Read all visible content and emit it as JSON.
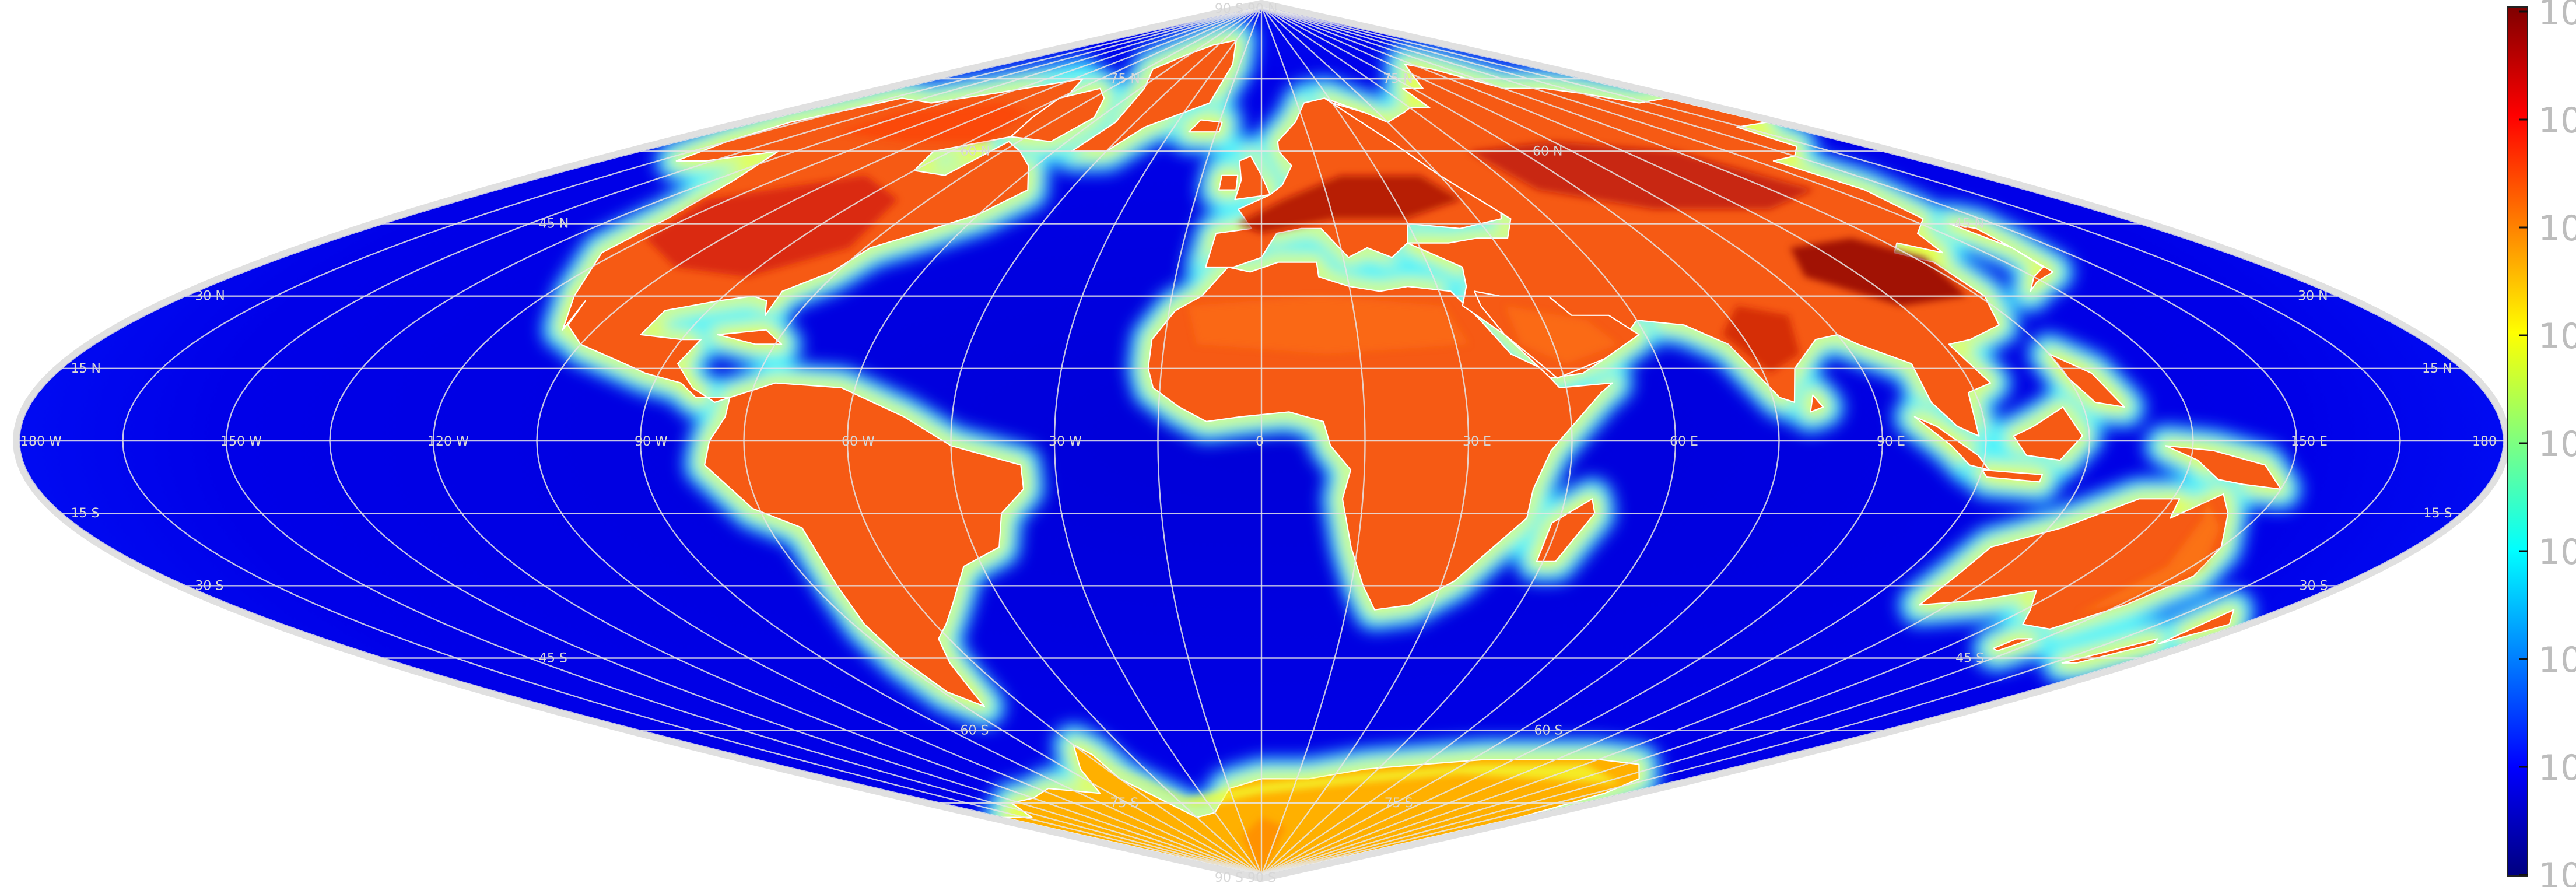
{
  "map": {
    "projection": "sinusoidal",
    "center_longitude": 0,
    "graticule_spacing_deg": 15,
    "frame_color": "#e0e0e0",
    "border_color": "#ffffff",
    "meridian_labels": [
      "180 W",
      "150 W",
      "120 W",
      "90 W",
      "60 W",
      "30 W",
      "0",
      "30 E",
      "60 E",
      "90 E",
      "150 E",
      "180"
    ],
    "parallel_labels_left": [
      "90 S 90 N",
      "75 N",
      "60 N",
      "45 N",
      "30 N",
      "15 N",
      "15 S",
      "30 S",
      "45 S",
      "60 S",
      "75 S"
    ],
    "parallel_labels_right": [
      "75 N",
      "60 N",
      "45 N",
      "30 N",
      "15 N",
      "15 S",
      "30 S",
      "45 S",
      "60 S",
      "75 S"
    ],
    "bottom_pole_label": "90 S 90 S"
  },
  "colorbar": {
    "colormap": "jet",
    "colors": [
      "#00007f",
      "#0000ff",
      "#007fff",
      "#00ffff",
      "#7fff7f",
      "#ffff00",
      "#ff7f00",
      "#ff0000",
      "#7f0000"
    ],
    "tick_labels": [
      "10",
      "10",
      "10",
      "10",
      "10",
      "10",
      "10",
      "10",
      "10"
    ]
  }
}
